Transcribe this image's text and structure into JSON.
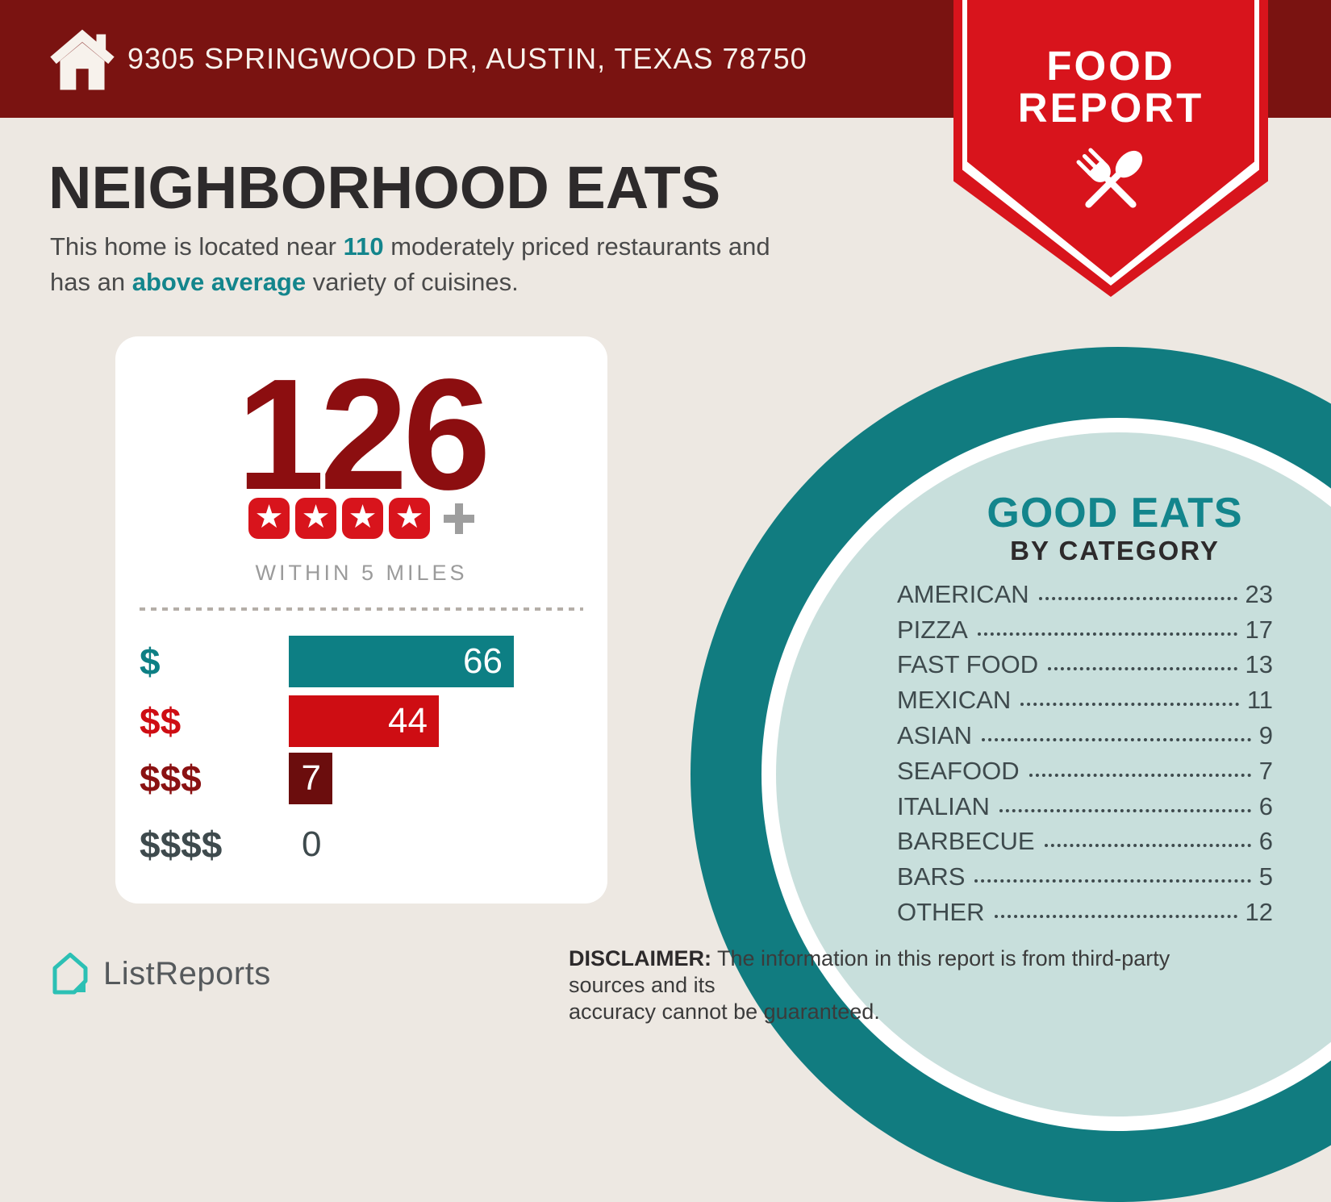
{
  "colors": {
    "background": "#ede8e2",
    "header_maroon": "#7a1311",
    "ribbon_red": "#d8141c",
    "count_dark_red": "#8c0e10",
    "teal_accent": "#13858c",
    "teal_ring": "#117c80",
    "light_teal_fill": "#c8dfdc",
    "slate_text": "#3e4a4d",
    "gray_text": "#9b9b9b",
    "logo_teal": "#2cc0b4"
  },
  "header": {
    "address": "9305 SPRINGWOOD DR, AUSTIN, TEXAS 78750"
  },
  "ribbon": {
    "line1": "FOOD",
    "line2": "REPORT"
  },
  "intro": {
    "title": "NEIGHBORHOOD EATS",
    "line1_pre": "This home is located near ",
    "line1_count": "110",
    "line1_post": " moderately priced restaurants and",
    "line2_pre": "has an ",
    "line2_highlight": "above average",
    "line2_post": " variety of cuisines."
  },
  "summary_card": {
    "restaurant_count": "126",
    "rating_stars": 4,
    "plus_label": "+",
    "radius_label": "WITHIN 5 MILES"
  },
  "good_eats": {
    "title": "GOOD EATS",
    "subtitle": "BY CATEGORY"
  },
  "footer": {
    "brand": "ListReports",
    "disclaimer_label": "DISCLAIMER:",
    "disclaimer_line1": "The information in this report is from third-party sources and its",
    "disclaimer_line2": "accuracy cannot be guaranteed."
  },
  "chart_data": [
    {
      "type": "bar",
      "orientation": "horizontal",
      "title": "WITHIN 5 MILES",
      "categories": [
        "$",
        "$$",
        "$$$",
        "$$$$"
      ],
      "values": [
        66,
        44,
        7,
        0
      ],
      "bar_colors": [
        "#0d7f84",
        "#ce0d13",
        "#6b0d0d",
        ""
      ],
      "label_colors": [
        "#0d7f84",
        "#ce0d13",
        "#8a1112",
        "#3e4a4d"
      ],
      "value_text_color": "#ffffff",
      "zero_value_color": "#3e4a4d",
      "xlim": [
        0,
        66
      ],
      "grid": false,
      "legend": false
    },
    {
      "type": "table",
      "title": "GOOD EATS",
      "subtitle": "BY CATEGORY",
      "categories": [
        "AMERICAN",
        "PIZZA",
        "FAST FOOD",
        "MEXICAN",
        "ASIAN",
        "SEAFOOD",
        "ITALIAN",
        "BARBECUE",
        "BARS",
        "OTHER"
      ],
      "values": [
        23,
        17,
        13,
        11,
        9,
        7,
        6,
        6,
        5,
        12
      ]
    }
  ]
}
